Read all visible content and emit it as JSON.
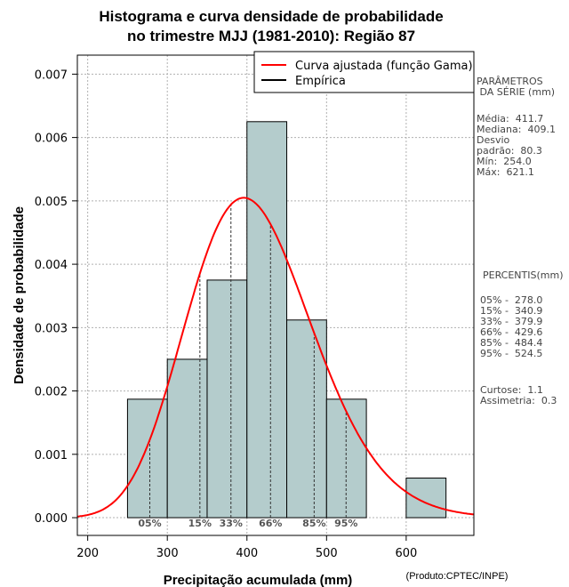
{
  "chart_data": {
    "type": "histogram",
    "title_line1": "Histograma e curva densidade de probabilidade",
    "title_line2": "no trimestre MJJ (1981-2010): Região 87",
    "xlabel": "Precipitação acumulada (mm)",
    "ylabel": "Densidade de probabilidade",
    "credit": "(Produto:CPTEC/INPE)",
    "xlim": [
      187,
      685
    ],
    "ylim": [
      -0.00028,
      0.0073
    ],
    "x_ticks": [
      200,
      300,
      400,
      500,
      600
    ],
    "y_ticks": [
      0.0,
      0.001,
      0.002,
      0.003,
      0.004,
      0.005,
      0.006,
      0.007
    ],
    "y_tick_labels": [
      "0.000",
      "0.001",
      "0.002",
      "0.003",
      "0.004",
      "0.005",
      "0.006",
      "0.007"
    ],
    "bins": [
      {
        "from": 250,
        "to": 300,
        "density": 0.00187
      },
      {
        "from": 300,
        "to": 350,
        "density": 0.0025
      },
      {
        "from": 350,
        "to": 400,
        "density": 0.00375
      },
      {
        "from": 400,
        "to": 450,
        "density": 0.00625
      },
      {
        "from": 450,
        "to": 500,
        "density": 0.00312
      },
      {
        "from": 500,
        "to": 550,
        "density": 0.00187
      },
      {
        "from": 600,
        "to": 650,
        "density": 0.000625
      }
    ],
    "gamma_fit": {
      "mean": 411.7,
      "sd": 80.3
    },
    "legend": [
      {
        "label": "Curva ajustada (função Gama)",
        "color": "#ff0000"
      },
      {
        "label": "Empírica",
        "color": "#000000"
      }
    ],
    "percentile_lines": [
      {
        "label": "05%",
        "value": 278.0
      },
      {
        "label": "15%",
        "value": 340.9
      },
      {
        "label": "33%",
        "value": 379.9
      },
      {
        "label": "66%",
        "value": 429.6
      },
      {
        "label": "85%",
        "value": 484.4
      },
      {
        "label": "95%",
        "value": 524.5
      }
    ],
    "colors": {
      "bar_fill": "#b4cccc",
      "curve": "#ff0000",
      "grid": "#b0b0b0",
      "percentile_text": "#555555"
    }
  },
  "stats_panel": {
    "params_title": "PARÂMETROS\n DA SÉRIE (mm)",
    "params": "Média:  411.7\nMediana:  409.1\nDesvio\npadrão:  80.3\nMín:  254.0\nMáx:  621.1",
    "percentis_title": "PERCENTIS(mm)",
    "percentis": "05% -  278.0\n15% -  340.9\n33% -  379.9\n66% -  429.6\n85% -  484.4\n95% -  524.5",
    "shape": "Curtose:  1.1\nAssimetria:  0.3"
  }
}
